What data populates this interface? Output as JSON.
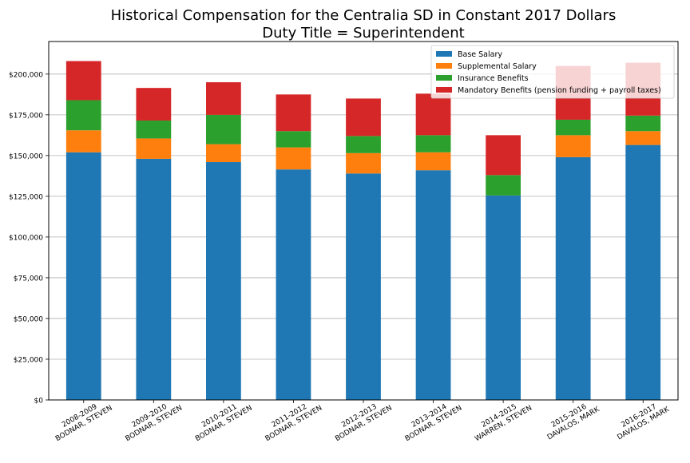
{
  "chart_data": {
    "type": "bar",
    "stacked": true,
    "title": "Historical Compensation for the Centralia SD in Constant 2017 Dollars",
    "subtitle": "Duty Title = Superintendent",
    "xlabel": "",
    "ylabel": "",
    "ylim": [
      0,
      220000
    ],
    "yticks": [
      0,
      25000,
      50000,
      75000,
      100000,
      125000,
      150000,
      175000,
      200000
    ],
    "ytick_labels": [
      "$0",
      "$25,000",
      "$50,000",
      "$75,000",
      "$100,000",
      "$125,000",
      "$150,000",
      "$175,000",
      "$200,000"
    ],
    "grid": "horizontal",
    "legend_position": "top-right",
    "categories": [
      [
        "2008-2009",
        "BODNAR, STEVEN"
      ],
      [
        "2009-2010",
        "BODNAR, STEVEN"
      ],
      [
        "2010-2011",
        "BODNAR, STEVEN"
      ],
      [
        "2011-2012",
        "BODNAR, STEVEN"
      ],
      [
        "2012-2013",
        "BODNAR, STEVEN"
      ],
      [
        "2013-2014",
        "BODNAR, STEVEN"
      ],
      [
        "2014-2015",
        "WARREN, STEVEN"
      ],
      [
        "2015-2016",
        "DAVALOS, MARK"
      ],
      [
        "2016-2017",
        "DAVALOS, MARK"
      ]
    ],
    "series": [
      {
        "name": "Base Salary",
        "color": "#1f77b4",
        "values": [
          152000,
          148000,
          146000,
          141500,
          139000,
          141000,
          125500,
          149000,
          156500
        ]
      },
      {
        "name": "Supplemental Salary",
        "color": "#ff7f0e",
        "values": [
          13500,
          12500,
          11000,
          13500,
          12500,
          11000,
          0,
          13500,
          8500
        ]
      },
      {
        "name": "Insurance Benefits",
        "color": "#2ca02c",
        "values": [
          18500,
          11000,
          18000,
          10000,
          10500,
          10500,
          12500,
          9500,
          9500
        ]
      },
      {
        "name": "Mandatory Benefits (pension funding + payroll taxes)",
        "color": "#d62728",
        "values": [
          24000,
          20000,
          20000,
          22500,
          23000,
          25500,
          24500,
          33000,
          32500
        ]
      }
    ]
  }
}
